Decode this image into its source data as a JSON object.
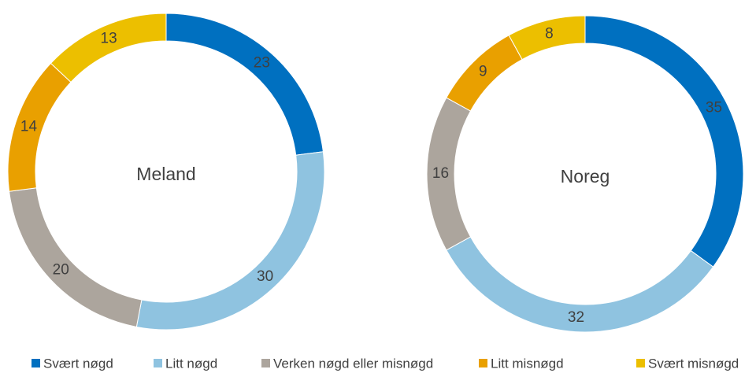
{
  "chart_data": [
    {
      "type": "pie",
      "title": "Meland",
      "values": [
        23,
        30,
        20,
        14,
        13
      ]
    },
    {
      "type": "pie",
      "title": "Noreg",
      "values": [
        35,
        32,
        16,
        9,
        8
      ]
    }
  ],
  "legend": {
    "categories": [
      "Svært nøgd",
      "Litt nøgd",
      "Verken nøgd eller misnøgd",
      "Litt misnøgd",
      "Svært misnøgd"
    ],
    "colors": [
      "#0070c0",
      "#8fc3e0",
      "#aca59d",
      "#e9a000",
      "#ecbf00"
    ]
  }
}
